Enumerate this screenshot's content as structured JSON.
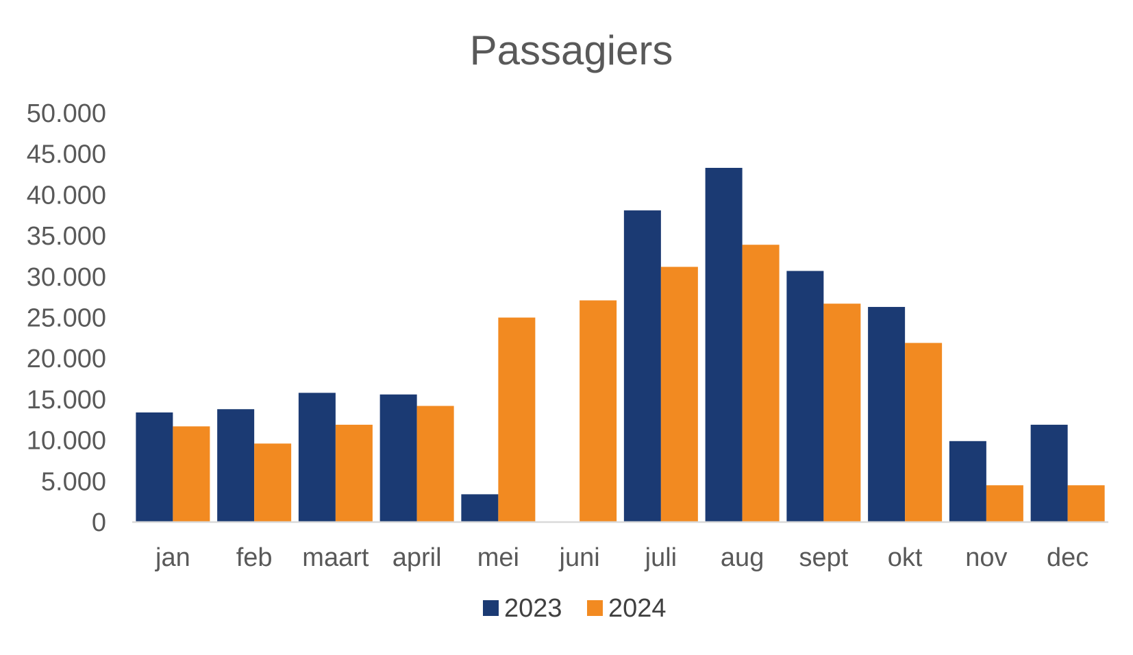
{
  "chart_data": {
    "type": "bar",
    "title": "Passagiers",
    "xlabel": "",
    "ylabel": "",
    "categories": [
      "jan",
      "feb",
      "maart",
      "april",
      "mei",
      "juni",
      "juli",
      "aug",
      "sept",
      "okt",
      "nov",
      "dec"
    ],
    "series": [
      {
        "name": "2023",
        "color": "#1b3a73",
        "values": [
          13400,
          13800,
          15800,
          15600,
          3400,
          0,
          38100,
          43300,
          30700,
          26300,
          9900,
          11900
        ]
      },
      {
        "name": "2024",
        "color": "#f28a21",
        "values": [
          11700,
          9600,
          11900,
          14200,
          25000,
          27100,
          31200,
          33900,
          26700,
          21900,
          4500,
          4500
        ]
      }
    ],
    "ylim": [
      0,
      50000
    ],
    "yticks": [
      "0",
      "5.000",
      "10.000",
      "15.000",
      "20.000",
      "25.000",
      "30.000",
      "35.000",
      "40.000",
      "45.000",
      "50.000"
    ],
    "ytick_step": 5000,
    "grid": false,
    "legend_position": "bottom"
  }
}
